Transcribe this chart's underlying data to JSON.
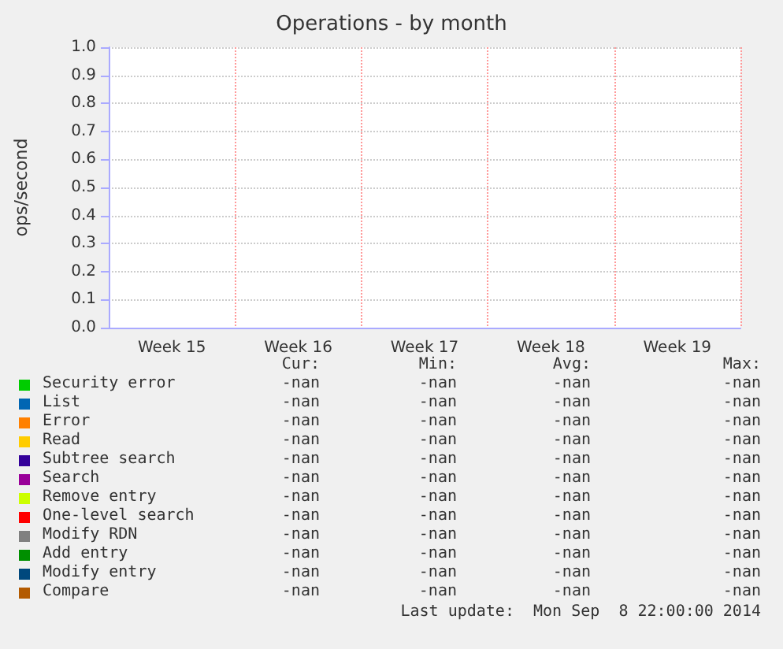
{
  "chart_data": {
    "type": "line",
    "title": "Operations - by month",
    "ylabel": "ops/second",
    "categories": [
      "Week 15",
      "Week 16",
      "Week 17",
      "Week 18",
      "Week 19"
    ],
    "ylim": [
      0,
      1
    ],
    "yticks": [
      {
        "value": 0,
        "label": "0.0"
      },
      {
        "value": 0.1,
        "label": "0.1"
      },
      {
        "value": 0.2,
        "label": "0.2"
      },
      {
        "value": 0.3,
        "label": "0.3"
      },
      {
        "value": 0.4,
        "label": "0.4"
      },
      {
        "value": 0.5,
        "label": "0.5"
      },
      {
        "value": 0.6,
        "label": "0.6"
      },
      {
        "value": 0.7,
        "label": "0.7"
      },
      {
        "value": 0.8,
        "label": "0.8"
      },
      {
        "value": 0.9,
        "label": "0.9"
      },
      {
        "value": 1,
        "label": "1.0"
      }
    ],
    "grid": true,
    "legend": "bottom",
    "series": [
      {
        "name": "Security error",
        "color": "#00cc00",
        "values": [
          null,
          null,
          null,
          null,
          null
        ]
      },
      {
        "name": "List",
        "color": "#0066b3",
        "values": [
          null,
          null,
          null,
          null,
          null
        ]
      },
      {
        "name": "Error",
        "color": "#ff8000",
        "values": [
          null,
          null,
          null,
          null,
          null
        ]
      },
      {
        "name": "Read",
        "color": "#ffcc00",
        "values": [
          null,
          null,
          null,
          null,
          null
        ]
      },
      {
        "name": "Subtree search",
        "color": "#330099",
        "values": [
          null,
          null,
          null,
          null,
          null
        ]
      },
      {
        "name": "Search",
        "color": "#990099",
        "values": [
          null,
          null,
          null,
          null,
          null
        ]
      },
      {
        "name": "Remove entry",
        "color": "#ccff00",
        "values": [
          null,
          null,
          null,
          null,
          null
        ]
      },
      {
        "name": "One-level search",
        "color": "#ff0000",
        "values": [
          null,
          null,
          null,
          null,
          null
        ]
      },
      {
        "name": "Modify RDN",
        "color": "#808080",
        "values": [
          null,
          null,
          null,
          null,
          null
        ]
      },
      {
        "name": "Add entry",
        "color": "#008f00",
        "values": [
          null,
          null,
          null,
          null,
          null
        ]
      },
      {
        "name": "Modify entry",
        "color": "#00487d",
        "values": [
          null,
          null,
          null,
          null,
          null
        ]
      },
      {
        "name": "Compare",
        "color": "#b35a00",
        "values": [
          null,
          null,
          null,
          null,
          null
        ]
      }
    ],
    "annotations": [
      "Cur:",
      "Min:",
      "Avg:",
      "Max:",
      "-nan",
      "-nan",
      "-nan",
      "-nan",
      "-nan",
      "-nan",
      "-nan",
      "-nan",
      "-nan",
      "-nan",
      "-nan",
      "-nan",
      "-nan",
      "-nan",
      "-nan",
      "-nan",
      "-nan",
      "-nan",
      "-nan",
      "-nan",
      "-nan",
      "-nan",
      "-nan",
      "-nan",
      "-nan",
      "-nan",
      "-nan",
      "-nan",
      "-nan",
      "-nan",
      "-nan",
      "-nan",
      "-nan",
      "-nan",
      "-nan",
      "-nan",
      "-nan",
      "-nan",
      "-nan",
      "-nan",
      "-nan",
      "-nan",
      "-nan",
      "-nan",
      "-nan",
      "-nan",
      "-nan",
      "-nan",
      "Last update:  Mon Sep  8 22:00:00 2014"
    ]
  }
}
